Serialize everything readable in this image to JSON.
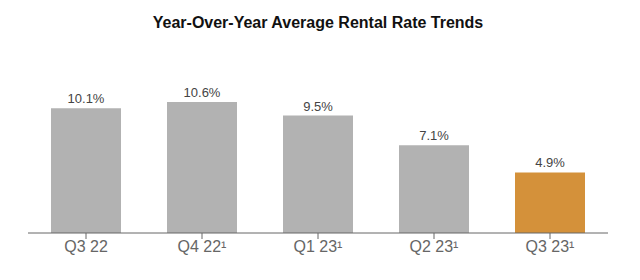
{
  "chart_data": {
    "type": "bar",
    "title": "Year-Over-Year Average Rental Rate Trends",
    "categories": [
      "Q3 22",
      "Q4 22¹",
      "Q1 23¹",
      "Q2 23¹",
      "Q3 23¹"
    ],
    "values": [
      10.1,
      10.6,
      9.5,
      7.1,
      4.9
    ],
    "value_labels": [
      "10.1%",
      "10.6%",
      "9.5%",
      "7.1%",
      "4.9%"
    ],
    "colors": [
      "#b2b2b2",
      "#b2b2b2",
      "#b2b2b2",
      "#b2b2b2",
      "#d4913a"
    ],
    "ylim": [
      0,
      14
    ],
    "grid": false,
    "data_labels": true,
    "tick_labels": "x"
  }
}
